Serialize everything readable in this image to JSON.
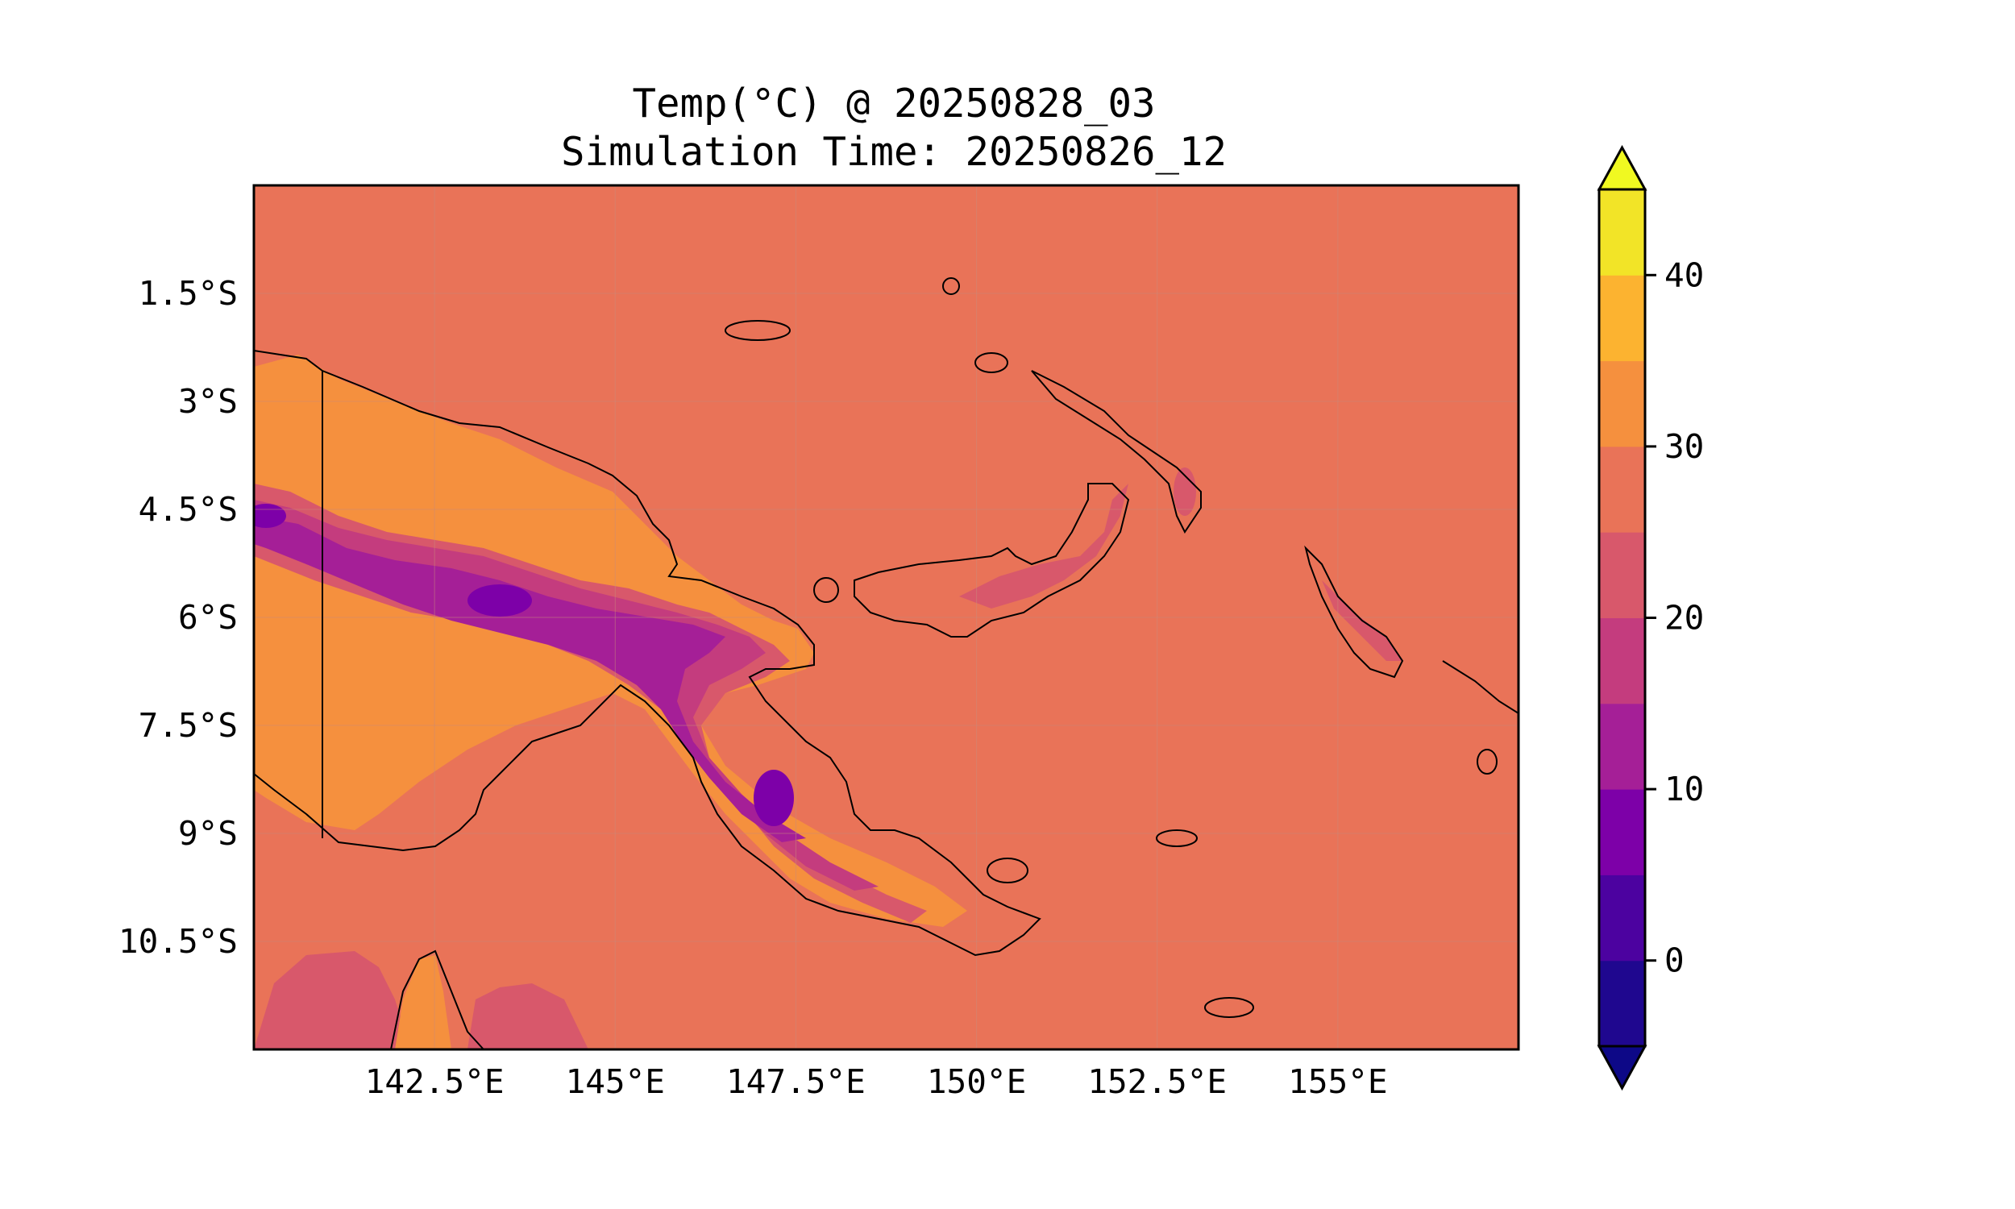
{
  "title": {
    "line1": "Temp(°C) @ 20250828_03",
    "line2": "Simulation Time: 20250826_12"
  },
  "map": {
    "projection": "PlateCarree",
    "lon_range": [
      140.0,
      157.5
    ],
    "lat_range": [
      -12.0,
      0.0
    ],
    "x_ticks": [
      {
        "lon": 142.5,
        "label": "142.5°E"
      },
      {
        "lon": 145.0,
        "label": "145°E"
      },
      {
        "lon": 147.5,
        "label": "147.5°E"
      },
      {
        "lon": 150.0,
        "label": "150°E"
      },
      {
        "lon": 152.5,
        "label": "152.5°E"
      },
      {
        "lon": 155.0,
        "label": "155°E"
      }
    ],
    "y_ticks": [
      {
        "lat": -1.5,
        "label": "1.5°S"
      },
      {
        "lat": -3.0,
        "label": "3°S"
      },
      {
        "lat": -4.5,
        "label": "4.5°S"
      },
      {
        "lat": -6.0,
        "label": "6°S"
      },
      {
        "lat": -7.5,
        "label": "7.5°S"
      },
      {
        "lat": -9.0,
        "label": "9°S"
      },
      {
        "lat": -10.5,
        "label": "10.5°S"
      }
    ],
    "ocean_color": "#e97358",
    "border_color": "#000000",
    "grid": true
  },
  "colorbar": {
    "colormap": "plasma",
    "extend": "both",
    "levels": [
      -5,
      0,
      5,
      10,
      15,
      20,
      25,
      30,
      35,
      40,
      45
    ],
    "colors": [
      "#1f078f",
      "#4c02a0",
      "#7d00a8",
      "#a51f97",
      "#c43c7e",
      "#d8586b",
      "#e97358",
      "#f5903e",
      "#fcb330",
      "#f2e427"
    ],
    "under_color": "#0d0887",
    "over_color": "#f0f921",
    "tick_labels": [
      {
        "value": 0,
        "label": "0"
      },
      {
        "value": 10,
        "label": "10"
      },
      {
        "value": 20,
        "label": "20"
      },
      {
        "value": 30,
        "label": "30"
      },
      {
        "value": 40,
        "label": "40"
      }
    ]
  }
}
